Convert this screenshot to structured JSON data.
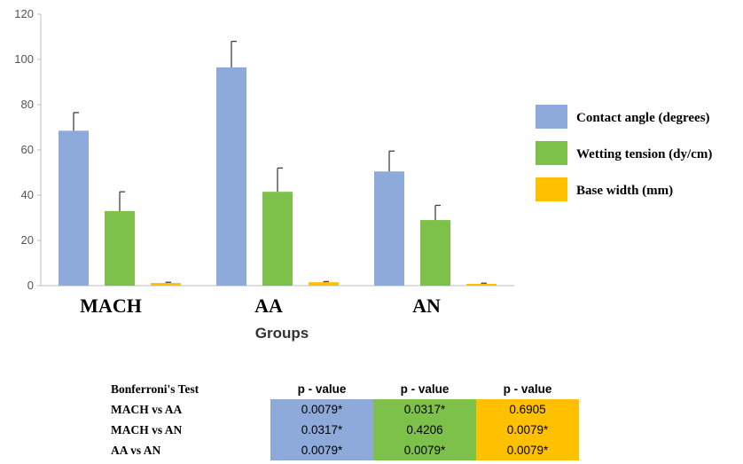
{
  "chart_data": {
    "type": "bar",
    "categories": [
      "MACH",
      "AA",
      "AN"
    ],
    "series": [
      {
        "name": "Contact angle (degrees)",
        "color": "#8eaadb",
        "values": [
          68.5,
          96.5,
          50.5
        ],
        "errors": [
          8,
          11.5,
          9
        ]
      },
      {
        "name": "Wetting tension (dy/cm)",
        "color": "#7dc14a",
        "values": [
          33,
          41.5,
          29
        ],
        "errors": [
          8.5,
          10.5,
          6.5
        ]
      },
      {
        "name": "Base width (mm)",
        "color": "#ffc000",
        "values": [
          1.2,
          1.5,
          0.8
        ],
        "errors": [
          0.3,
          0.3,
          0.3
        ]
      }
    ],
    "xlabel": "Groups",
    "ylabel": "",
    "ylim": [
      0,
      120
    ],
    "yticks": [
      0,
      20,
      40,
      60,
      80,
      100,
      120
    ],
    "legend_position": "right",
    "grid": false
  },
  "table": {
    "header": [
      "Bonferroni's Test",
      "p - value",
      "p - value",
      "p - value"
    ],
    "rows": [
      {
        "label": "MACH vs AA",
        "values": [
          "0.0079*",
          "0.0317*",
          "0.6905"
        ]
      },
      {
        "label": "MACH vs AN",
        "values": [
          "0.0317*",
          "0.4206",
          "0.0079*"
        ]
      },
      {
        "label": "AA vs AN",
        "values": [
          "0.0079*",
          "0.0079*",
          "0.0079*"
        ]
      }
    ]
  }
}
